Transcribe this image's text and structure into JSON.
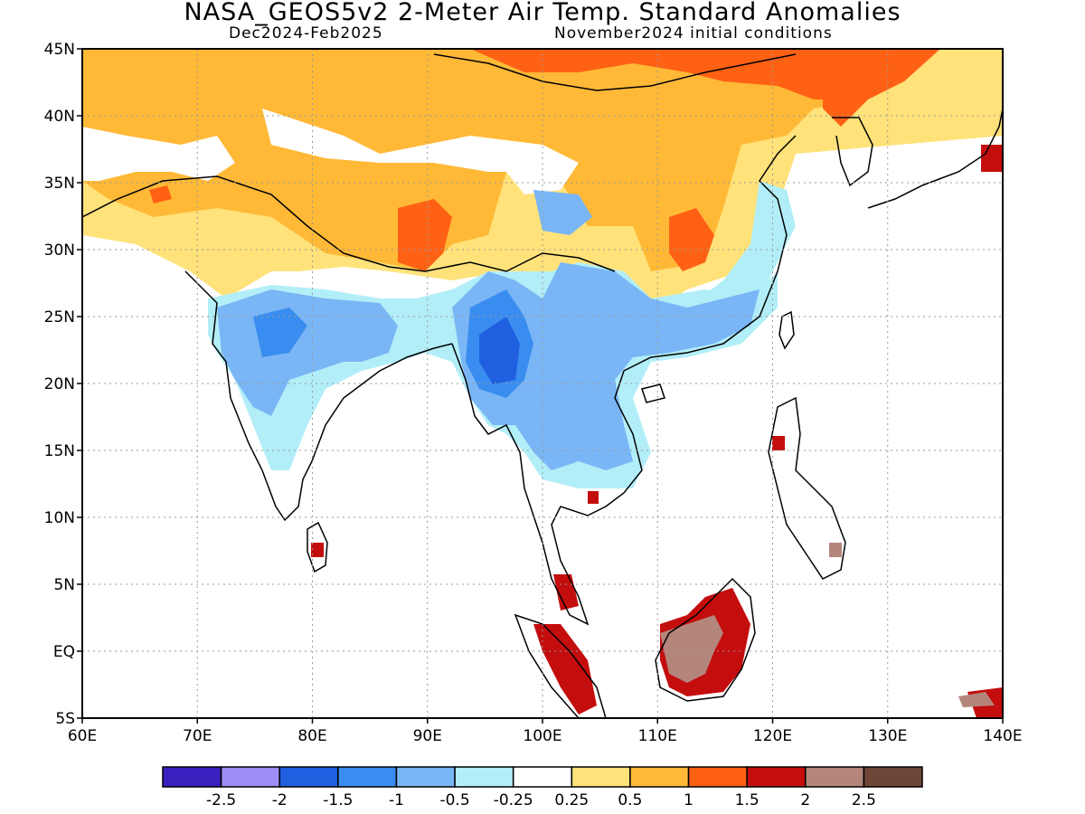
{
  "header": {
    "title": "NASA_GEOS5v2 2-Meter Air Temp. Standard Anomalies",
    "period": "Dec2024-Feb2025",
    "init": "November2024 initial conditions"
  },
  "map": {
    "lon_ticks": [
      "60E",
      "70E",
      "80E",
      "90E",
      "100E",
      "110E",
      "120E",
      "130E",
      "140E"
    ],
    "lat_ticks": [
      "45N",
      "40N",
      "35N",
      "30N",
      "25N",
      "20N",
      "15N",
      "10N",
      "5N",
      "EQ",
      "5S"
    ],
    "lon_range": [
      60,
      140
    ],
    "lat_range": [
      -5,
      45
    ]
  },
  "colorbar": {
    "colors": [
      "#3b1fbf",
      "#9d8df5",
      "#1f5fe0",
      "#3a8df0",
      "#7ab6f5",
      "#b2eef8",
      "#ffffff",
      "#ffe27a",
      "#ffb936",
      "#ff6114",
      "#c40d0d",
      "#b4857b",
      "#6e4638"
    ],
    "labels": [
      "-2.5",
      "-2",
      "-1.5",
      "-1",
      "-0.5",
      "-0.25",
      "0.25",
      "0.5",
      "1",
      "1.5",
      "2",
      "2.5"
    ]
  }
}
